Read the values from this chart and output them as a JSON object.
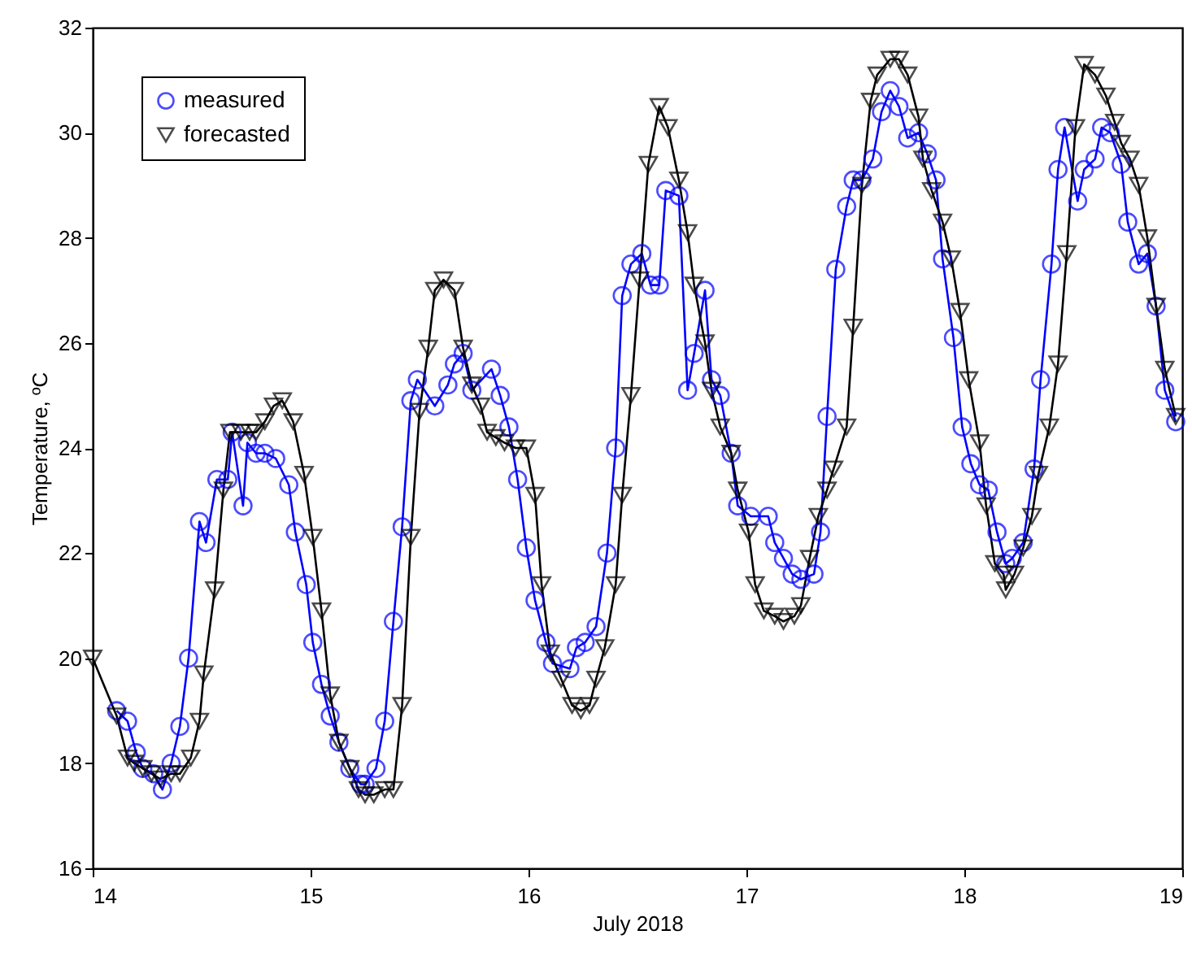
{
  "chart_data": {
    "type": "line",
    "xlabel": "July 2018",
    "ylabel": "Temperature, ºC",
    "xlim": [
      14,
      19
    ],
    "xticks": [
      14,
      15,
      16,
      17,
      18,
      19
    ],
    "ylim": [
      16,
      32
    ],
    "yticks": [
      16,
      18,
      20,
      22,
      24,
      26,
      28,
      30,
      32
    ],
    "grid": false,
    "legend": "top left",
    "line_style": "solid",
    "series": [
      {
        "name": "measured",
        "color": "#0000ff",
        "marker": "circle",
        "x": [
          14.11,
          14.16,
          14.2,
          14.23,
          14.28,
          14.32,
          14.36,
          14.4,
          14.44,
          14.49,
          14.52,
          14.57,
          14.62,
          14.64,
          14.69,
          14.71,
          14.75,
          14.79,
          14.84,
          14.9,
          14.93,
          14.98,
          15.01,
          15.05,
          15.09,
          15.13,
          15.18,
          15.23,
          15.25,
          15.3,
          15.34,
          15.38,
          15.42,
          15.46,
          15.49,
          15.57,
          15.63,
          15.66,
          15.7,
          15.74,
          15.83,
          15.87,
          15.91,
          15.95,
          15.99,
          16.03,
          16.08,
          16.11,
          16.19,
          16.22,
          16.26,
          16.31,
          16.36,
          16.4,
          16.43,
          16.47,
          16.52,
          16.56,
          16.6,
          16.63,
          16.69,
          16.73,
          16.76,
          16.81,
          16.84,
          16.88,
          16.93,
          16.96,
          17.02,
          17.1,
          17.13,
          17.17,
          17.21,
          17.25,
          17.31,
          17.34,
          17.37,
          17.41,
          17.46,
          17.49,
          17.53,
          17.58,
          17.62,
          17.66,
          17.7,
          17.74,
          17.79,
          17.83,
          17.87,
          17.9,
          17.95,
          17.99,
          18.03,
          18.07,
          18.11,
          18.15,
          18.19,
          18.22,
          18.27,
          18.32,
          18.35,
          18.4,
          18.43,
          18.46,
          18.52,
          18.55,
          18.6,
          18.63,
          18.67,
          18.72,
          18.75,
          18.8,
          18.84,
          18.88,
          18.92,
          18.97
        ],
        "values": [
          19.0,
          18.8,
          18.2,
          17.9,
          17.8,
          17.5,
          18.0,
          18.7,
          20.0,
          22.6,
          22.2,
          23.4,
          23.4,
          24.3,
          22.9,
          24.1,
          23.9,
          23.9,
          23.8,
          23.3,
          22.4,
          21.4,
          20.3,
          19.5,
          18.9,
          18.4,
          17.9,
          17.6,
          17.6,
          17.9,
          18.8,
          20.7,
          22.5,
          24.9,
          25.3,
          24.8,
          25.2,
          25.6,
          25.8,
          25.1,
          25.5,
          25.0,
          24.4,
          23.4,
          22.1,
          21.1,
          20.3,
          19.9,
          19.8,
          20.2,
          20.3,
          20.6,
          22.0,
          24.0,
          26.9,
          27.5,
          27.7,
          27.1,
          27.1,
          28.9,
          28.8,
          25.1,
          25.8,
          27.0,
          25.3,
          25.0,
          23.9,
          22.9,
          22.7,
          22.7,
          22.2,
          21.9,
          21.6,
          21.5,
          21.6,
          22.4,
          24.6,
          27.4,
          28.6,
          29.1,
          29.1,
          29.5,
          30.4,
          30.8,
          30.5,
          29.9,
          30.0,
          29.6,
          29.1,
          27.6,
          26.1,
          24.4,
          23.7,
          23.3,
          23.2,
          22.4,
          21.8,
          21.9,
          22.2,
          23.6,
          25.3,
          27.5,
          29.3,
          30.1,
          28.7,
          29.3,
          29.5,
          30.1,
          30.0,
          29.4,
          28.3,
          27.5,
          27.7,
          26.7,
          25.1,
          24.5
        ]
      },
      {
        "name": "forecasted",
        "color": "#000000",
        "marker": "triangle",
        "x": [
          14.0,
          14.11,
          14.16,
          14.19,
          14.23,
          14.27,
          14.31,
          14.36,
          14.4,
          14.45,
          14.49,
          14.51,
          14.56,
          14.6,
          14.63,
          14.68,
          14.72,
          14.75,
          14.79,
          14.83,
          14.87,
          14.92,
          14.97,
          15.01,
          15.05,
          15.09,
          15.13,
          15.18,
          15.22,
          15.25,
          15.29,
          15.34,
          15.38,
          15.42,
          15.46,
          15.5,
          15.54,
          15.57,
          15.61,
          15.66,
          15.7,
          15.74,
          15.78,
          15.81,
          15.85,
          15.89,
          15.94,
          15.99,
          16.03,
          16.06,
          16.1,
          16.15,
          16.2,
          16.24,
          16.28,
          16.31,
          16.35,
          16.4,
          16.43,
          16.47,
          16.51,
          16.55,
          16.6,
          16.64,
          16.69,
          16.73,
          16.76,
          16.81,
          16.84,
          16.88,
          16.93,
          16.96,
          17.01,
          17.04,
          17.08,
          17.13,
          17.17,
          17.22,
          17.25,
          17.29,
          17.33,
          17.37,
          17.4,
          17.46,
          17.49,
          17.53,
          17.57,
          17.6,
          17.66,
          17.7,
          17.74,
          17.79,
          17.81,
          17.85,
          17.9,
          17.94,
          17.98,
          18.02,
          18.07,
          18.1,
          18.14,
          18.18,
          18.19,
          18.23,
          18.27,
          18.31,
          18.34,
          18.39,
          18.43,
          18.47,
          18.51,
          18.55,
          18.6,
          18.65,
          18.69,
          18.72,
          18.76,
          18.8,
          18.84,
          18.88,
          18.92,
          18.97
        ],
        "values": [
          20.0,
          18.9,
          18.1,
          18.0,
          17.9,
          17.8,
          17.7,
          17.8,
          17.8,
          18.1,
          18.8,
          19.7,
          21.3,
          23.2,
          24.3,
          24.3,
          24.3,
          24.3,
          24.5,
          24.8,
          24.9,
          24.5,
          23.5,
          22.3,
          20.9,
          19.3,
          18.4,
          17.9,
          17.5,
          17.4,
          17.4,
          17.5,
          17.5,
          19.1,
          22.3,
          24.7,
          25.9,
          27.0,
          27.2,
          27.0,
          25.9,
          25.2,
          24.8,
          24.3,
          24.2,
          24.1,
          24.0,
          24.0,
          23.1,
          21.4,
          20.1,
          19.6,
          19.1,
          19.0,
          19.1,
          19.6,
          20.2,
          21.4,
          23.1,
          25.0,
          27.2,
          29.4,
          30.5,
          30.1,
          29.1,
          28.1,
          27.1,
          26.0,
          25.1,
          24.4,
          23.9,
          23.2,
          22.4,
          21.4,
          20.9,
          20.8,
          20.7,
          20.8,
          21.0,
          21.9,
          22.7,
          23.2,
          23.6,
          24.4,
          26.3,
          29.0,
          30.6,
          31.1,
          31.4,
          31.4,
          31.1,
          30.3,
          29.5,
          28.9,
          28.3,
          27.6,
          26.6,
          25.3,
          24.1,
          22.9,
          21.8,
          21.6,
          21.3,
          21.6,
          22.1,
          22.7,
          23.5,
          24.4,
          25.6,
          27.7,
          30.1,
          31.3,
          31.1,
          30.7,
          30.2,
          29.8,
          29.5,
          29.0,
          28.0,
          26.7,
          25.5,
          24.6
        ]
      }
    ]
  }
}
